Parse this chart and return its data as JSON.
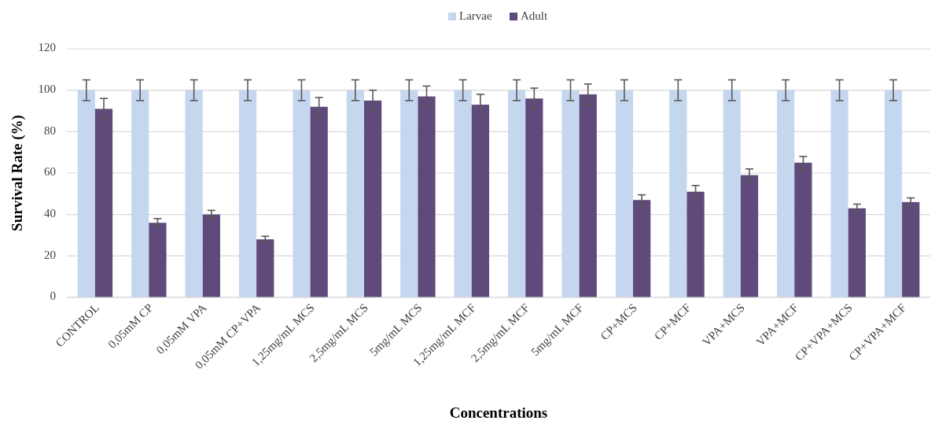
{
  "chart_data": {
    "type": "bar",
    "xlabel": "Concentrations",
    "ylabel": "Survival Rate (%)",
    "categories": [
      "CONTROL",
      "0,05mM CP",
      "0,05mM VPA",
      "0,05mM CP+VPA",
      "1,25mg/mL MCS",
      "2,5mg/mL MCS",
      "5mg/mL MCS",
      "1,25mg/mL MCF",
      "2,5mg/mL MCF",
      "5mg/mL MCF",
      "CP+MCS",
      "CP+MCF",
      "VPA+MCS",
      "VPA+MCF",
      "CP+VPA+MCS",
      "CP+VPA+MCF"
    ],
    "series": [
      {
        "name": "Larvae",
        "color": "#c5d7ef",
        "values": [
          100,
          100,
          100,
          100,
          100,
          100,
          100,
          100,
          100,
          100,
          100,
          100,
          100,
          100,
          100,
          100
        ],
        "errors": [
          5,
          5,
          5,
          5,
          5,
          5,
          5,
          5,
          5,
          5,
          5,
          5,
          5,
          5,
          5,
          5
        ]
      },
      {
        "name": "Adult",
        "color": "#5f4a7b",
        "values": [
          91,
          36,
          40,
          28,
          92,
          95,
          97,
          93,
          96,
          98,
          47,
          51,
          59,
          65,
          43,
          46
        ],
        "errors": [
          5,
          2,
          2,
          1.5,
          4.5,
          5,
          5,
          5,
          5,
          5,
          2.5,
          3,
          3,
          3,
          2,
          2
        ]
      }
    ],
    "ylim": [
      0,
      120
    ],
    "yticks": [
      0,
      20,
      40,
      60,
      80,
      100,
      120
    ],
    "grid": "y",
    "legend": "top"
  }
}
